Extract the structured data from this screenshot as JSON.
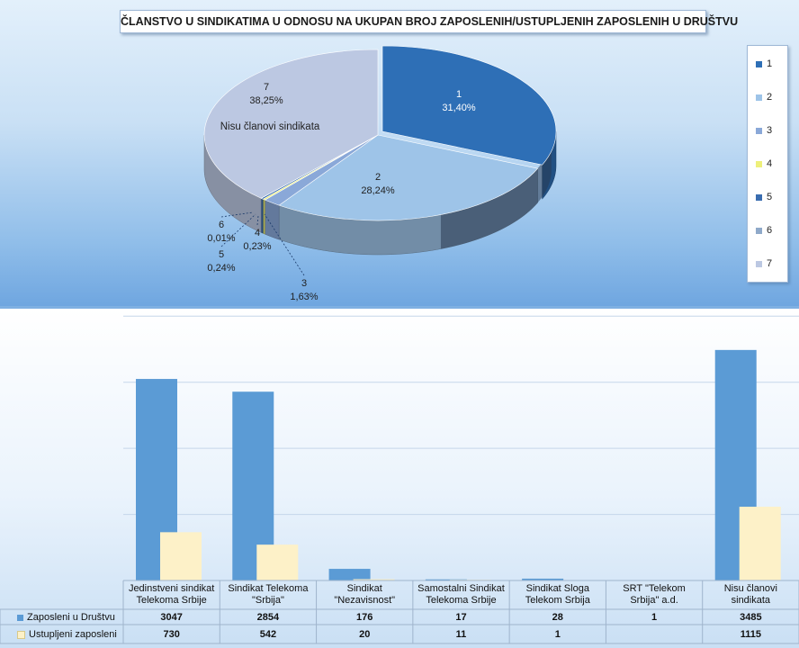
{
  "pie_chart": {
    "title": "ČLANSTVO U SINDIKATIMA U ODNOSU NA UKUPAN BROJ ZAPOSLENIH/USTUPLJENIH ZAPOSLENIH U DRUŠTVU",
    "annotation": "Nisu članovi sindikata",
    "legend": [
      "1",
      "2",
      "3",
      "4",
      "5",
      "6",
      "7"
    ],
    "colors": {
      "1": "#2e6fb6",
      "2": "#9ec4e8",
      "3": "#8aa8d8",
      "4": "#eef07a",
      "5": "#3a6db0",
      "6": "#8fa9c9",
      "7": "#bcc8e2"
    }
  },
  "bar_chart": {
    "series_names": [
      "Zaposleni u Društvu",
      "Ustupljeni zaposleni"
    ],
    "categories": [
      [
        "Jedinstveni sindikat",
        "Telekoma Srbije"
      ],
      [
        "Sindikat Telekoma",
        "\"Srbija\""
      ],
      [
        "Sindikat",
        "\"Nezavisnost\""
      ],
      [
        "Samostalni Sindikat",
        "Telekoma Srbije"
      ],
      [
        "Sindikat Sloga",
        "Telekom Srbija"
      ],
      [
        "SRT \"Telekom",
        "Srbija\" a.d."
      ],
      [
        "Nisu članovi",
        "sindikata"
      ]
    ],
    "zaposleni_text": [
      "3047",
      "2854",
      "176",
      "17",
      "28",
      "1",
      "3485"
    ],
    "ustupljeni_text": [
      "730",
      "542",
      "20",
      "11",
      "1",
      "",
      "1115"
    ],
    "colors": {
      "zaposleni": "#5b9bd5",
      "ustupljeni": "#fdf1c8"
    }
  },
  "chart_data": [
    {
      "type": "pie",
      "title": "ČLANSTVO U SINDIKATIMA U ODNOSU NA UKUPAN BROJ ZAPOSLENIH/USTUPLJENIH ZAPOSLENIH U DRUŠTVU",
      "labels": [
        "1",
        "2",
        "3",
        "4",
        "5",
        "6",
        "7"
      ],
      "values": [
        31.4,
        28.24,
        1.63,
        0.23,
        0.24,
        0.01,
        38.25
      ],
      "value_labels": [
        "31,40%",
        "28,24%",
        "1,63%",
        "0,23%",
        "0,24%",
        "0,01%",
        "38,25%"
      ],
      "legend_position": "right"
    },
    {
      "type": "bar",
      "categories": [
        "Jedinstveni sindikat Telekoma Srbije",
        "Sindikat Telekoma \"Srbija\"",
        "Sindikat \"Nezavisnost\"",
        "Samostalni Sindikat Telekoma Srbije",
        "Sindikat Sloga Telekom Srbija",
        "SRT \"Telekom Srbija\" a.d.",
        "Nisu članovi sindikata"
      ],
      "series": [
        {
          "name": "Zaposleni u Društvu",
          "values": [
            3047,
            2854,
            176,
            17,
            28,
            1,
            3485
          ]
        },
        {
          "name": "Ustupljeni zaposleni",
          "values": [
            730,
            542,
            20,
            11,
            1,
            0,
            1115
          ]
        }
      ],
      "ylim": [
        0,
        4000
      ],
      "grid": true,
      "data_table": true
    }
  ]
}
